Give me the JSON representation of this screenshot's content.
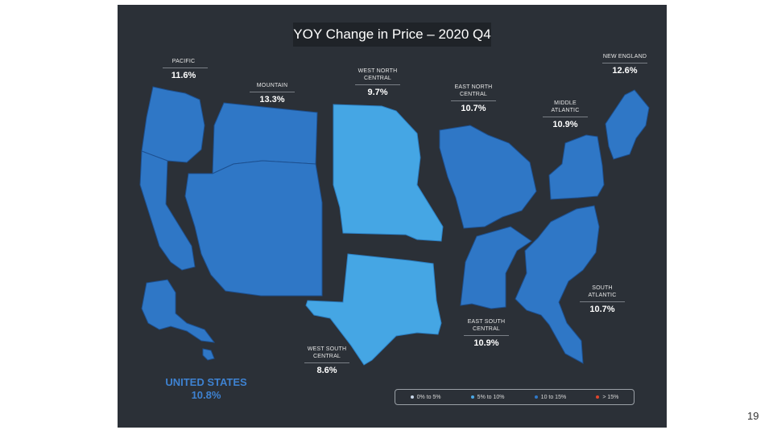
{
  "title": "YOY Change in Price – 2020 Q4",
  "regions": [
    {
      "name": "PACIFIC",
      "value": "11.6%"
    },
    {
      "name": "MOUNTAIN",
      "value": "13.3%"
    },
    {
      "name": "WEST NORTH CENTRAL",
      "value": "9.7%"
    },
    {
      "name": "EAST NORTH CENTRAL",
      "value": "10.7%"
    },
    {
      "name": "MIDDLE ATLANTIC",
      "value": "10.9%"
    },
    {
      "name": "NEW ENGLAND",
      "value": "12.6%"
    },
    {
      "name": "SOUTH ATLANTIC",
      "value": "10.7%"
    },
    {
      "name": "EAST SOUTH CENTRAL",
      "value": "10.9%"
    },
    {
      "name": "WEST SOUTH CENTRAL",
      "value": "8.6%"
    }
  ],
  "national": {
    "name": "UNITED STATES",
    "value": "10.8%"
  },
  "legend": [
    {
      "label": "0% to 5%",
      "color": "#c8d6e8"
    },
    {
      "label": "5% to 10%",
      "color": "#4aa8e6"
    },
    {
      "label": "10 to 15%",
      "color": "#2f78c8"
    },
    {
      "label": "> 15%",
      "color": "#e0452b"
    }
  ],
  "colors": {
    "band_5_10": "#45a6e4",
    "band_10_15": "#2f77c6",
    "background": "#2b3037"
  },
  "page_number": "19"
}
